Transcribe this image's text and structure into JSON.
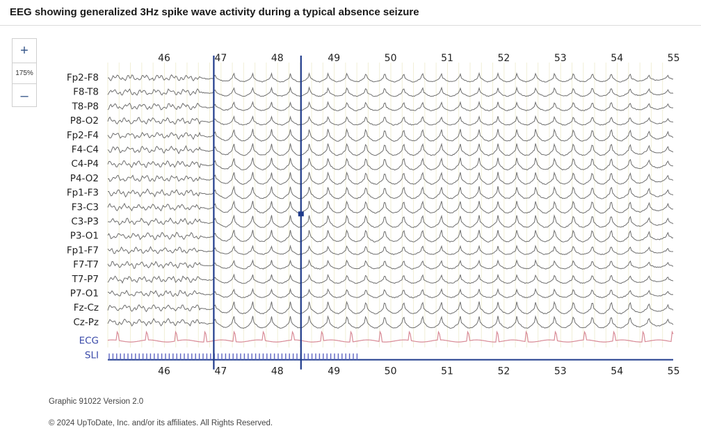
{
  "page": {
    "title": "EEG showing generalized 3Hz spike wave activity during a typical absence seizure"
  },
  "zoom": {
    "in_symbol": "+",
    "level": "175%",
    "out_symbol": "–"
  },
  "figure": {
    "time_labels": [
      "46",
      "47",
      "48",
      "49",
      "50",
      "51",
      "52",
      "53",
      "54",
      "55"
    ],
    "channels": [
      "Fp2-F8",
      "F8-T8",
      "T8-P8",
      "P8-O2",
      "Fp2-F4",
      "F4-C4",
      "C4-P4",
      "P4-O2",
      "Fp1-F3",
      "F3-C3",
      "C3-P3",
      "P3-O1",
      "Fp1-F7",
      "F7-T7",
      "T7-P7",
      "P7-O1",
      "Fz-Cz",
      "Cz-Pz"
    ],
    "aux_channels": [
      "ECG",
      "SLI"
    ],
    "colors": {
      "trace": "#6e6e6e",
      "marker": "#1f3b8c",
      "ecg": "#d88a96",
      "sli": "#5b62c2",
      "grid": "#f1efd6",
      "label": "#222222",
      "aux_label": "#3949a8"
    }
  },
  "footer": {
    "version": "Graphic 91022 Version 2.0",
    "copyright": "© 2024 UpToDate, Inc. and/or its affiliates. All Rights Reserved."
  }
}
